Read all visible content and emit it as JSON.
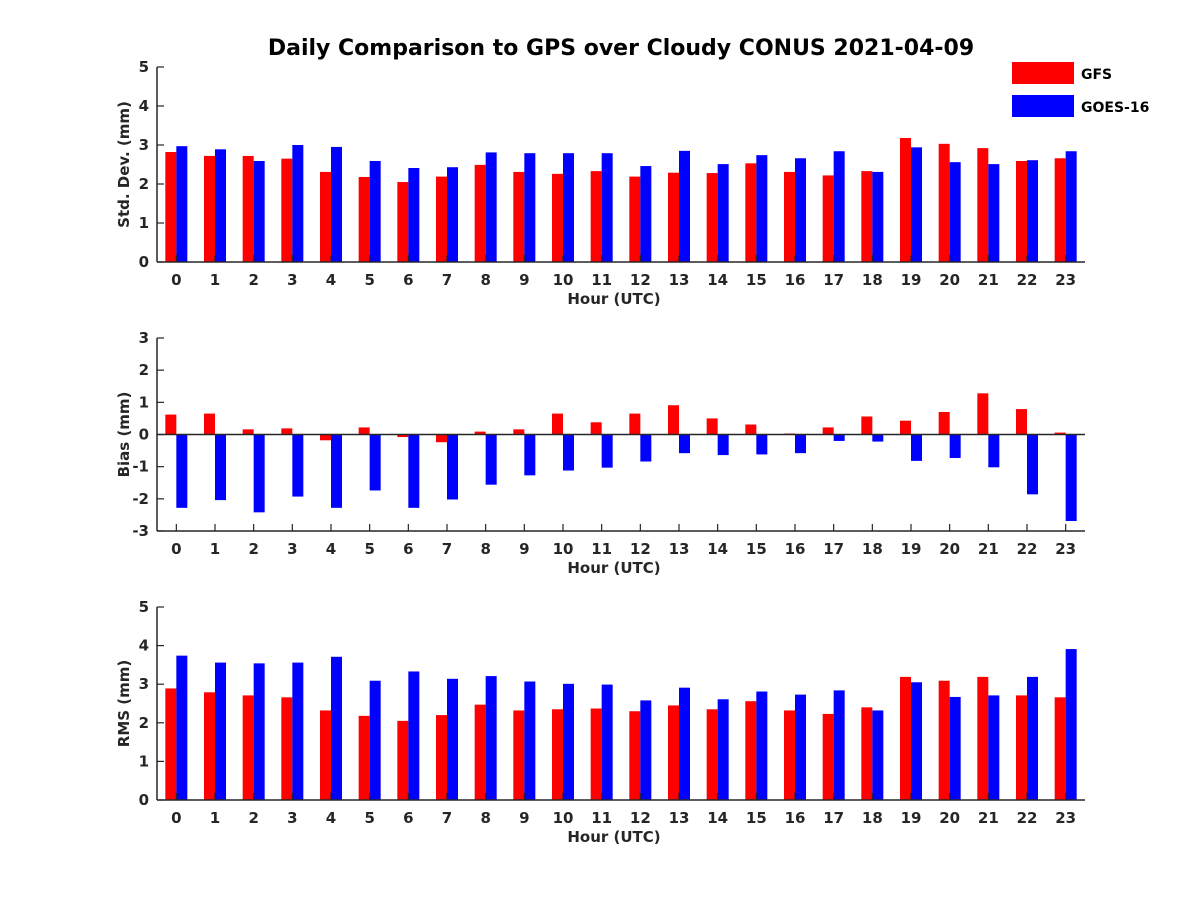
{
  "title": "Daily Comparison to GPS over Cloudy CONUS 2021-04-09",
  "colors": {
    "GFS": "#ff0000",
    "GOES-16": "#0000ff"
  },
  "legend": {
    "entries": [
      "GFS",
      "GOES-16"
    ],
    "placement": "top-right"
  },
  "chart_data": [
    {
      "type": "bar",
      "xlabel": "Hour (UTC)",
      "ylabel": "Std. Dev. (mm)",
      "ylim": [
        0,
        5
      ],
      "yticks": [
        0,
        1,
        2,
        3,
        4,
        5
      ],
      "categories": [
        "0",
        "1",
        "2",
        "3",
        "4",
        "5",
        "6",
        "7",
        "8",
        "9",
        "10",
        "11",
        "12",
        "13",
        "14",
        "15",
        "16",
        "17",
        "18",
        "19",
        "20",
        "21",
        "22",
        "23"
      ],
      "series": [
        {
          "name": "GFS",
          "values": [
            2.82,
            2.72,
            2.72,
            2.65,
            2.31,
            2.18,
            2.05,
            2.19,
            2.49,
            2.31,
            2.26,
            2.33,
            2.19,
            2.29,
            2.28,
            2.53,
            2.31,
            2.22,
            2.33,
            3.18,
            3.03,
            2.92,
            2.59,
            2.66
          ]
        },
        {
          "name": "GOES-16",
          "values": [
            2.97,
            2.89,
            2.59,
            3.0,
            2.95,
            2.59,
            2.41,
            2.43,
            2.81,
            2.79,
            2.79,
            2.79,
            2.46,
            2.85,
            2.51,
            2.74,
            2.66,
            2.84,
            2.31,
            2.94,
            2.56,
            2.51,
            2.61,
            2.84
          ]
        }
      ]
    },
    {
      "type": "bar",
      "xlabel": "Hour (UTC)",
      "ylabel": "Bias (mm)",
      "ylim": [
        -3,
        3
      ],
      "yticks": [
        -3,
        -2,
        -1,
        0,
        1,
        2,
        3
      ],
      "zero_line": true,
      "categories": [
        "0",
        "1",
        "2",
        "3",
        "4",
        "5",
        "6",
        "7",
        "8",
        "9",
        "10",
        "11",
        "12",
        "13",
        "14",
        "15",
        "16",
        "17",
        "18",
        "19",
        "20",
        "21",
        "22",
        "23"
      ],
      "series": [
        {
          "name": "GFS",
          "values": [
            0.62,
            0.65,
            0.16,
            0.19,
            -0.18,
            0.22,
            -0.08,
            -0.24,
            0.09,
            0.16,
            0.65,
            0.38,
            0.65,
            0.91,
            0.5,
            0.31,
            0.03,
            0.22,
            0.56,
            0.43,
            0.7,
            1.28,
            0.79,
            0.06
          ]
        },
        {
          "name": "GOES-16",
          "values": [
            -2.28,
            -2.04,
            -2.42,
            -1.93,
            -2.28,
            -1.74,
            -2.28,
            -2.02,
            -1.56,
            -1.27,
            -1.12,
            -1.03,
            -0.84,
            -0.58,
            -0.64,
            -0.62,
            -0.58,
            -0.2,
            -0.22,
            -0.82,
            -0.73,
            -1.02,
            -1.86,
            -2.69
          ]
        }
      ]
    },
    {
      "type": "bar",
      "xlabel": "Hour (UTC)",
      "ylabel": "RMS (mm)",
      "ylim": [
        0,
        5
      ],
      "yticks": [
        0,
        1,
        2,
        3,
        4,
        5
      ],
      "categories": [
        "0",
        "1",
        "2",
        "3",
        "4",
        "5",
        "6",
        "7",
        "8",
        "9",
        "10",
        "11",
        "12",
        "13",
        "14",
        "15",
        "16",
        "17",
        "18",
        "19",
        "20",
        "21",
        "22",
        "23"
      ],
      "series": [
        {
          "name": "GFS",
          "values": [
            2.89,
            2.79,
            2.71,
            2.66,
            2.32,
            2.18,
            2.05,
            2.2,
            2.47,
            2.32,
            2.35,
            2.37,
            2.3,
            2.45,
            2.35,
            2.56,
            2.32,
            2.23,
            2.4,
            3.19,
            3.09,
            3.19,
            2.71,
            2.66
          ]
        },
        {
          "name": "GOES-16",
          "values": [
            3.74,
            3.56,
            3.54,
            3.56,
            3.71,
            3.09,
            3.33,
            3.14,
            3.21,
            3.07,
            3.01,
            2.99,
            2.58,
            2.91,
            2.61,
            2.81,
            2.73,
            2.84,
            2.32,
            3.05,
            2.67,
            2.71,
            3.19,
            3.91
          ]
        }
      ]
    }
  ]
}
